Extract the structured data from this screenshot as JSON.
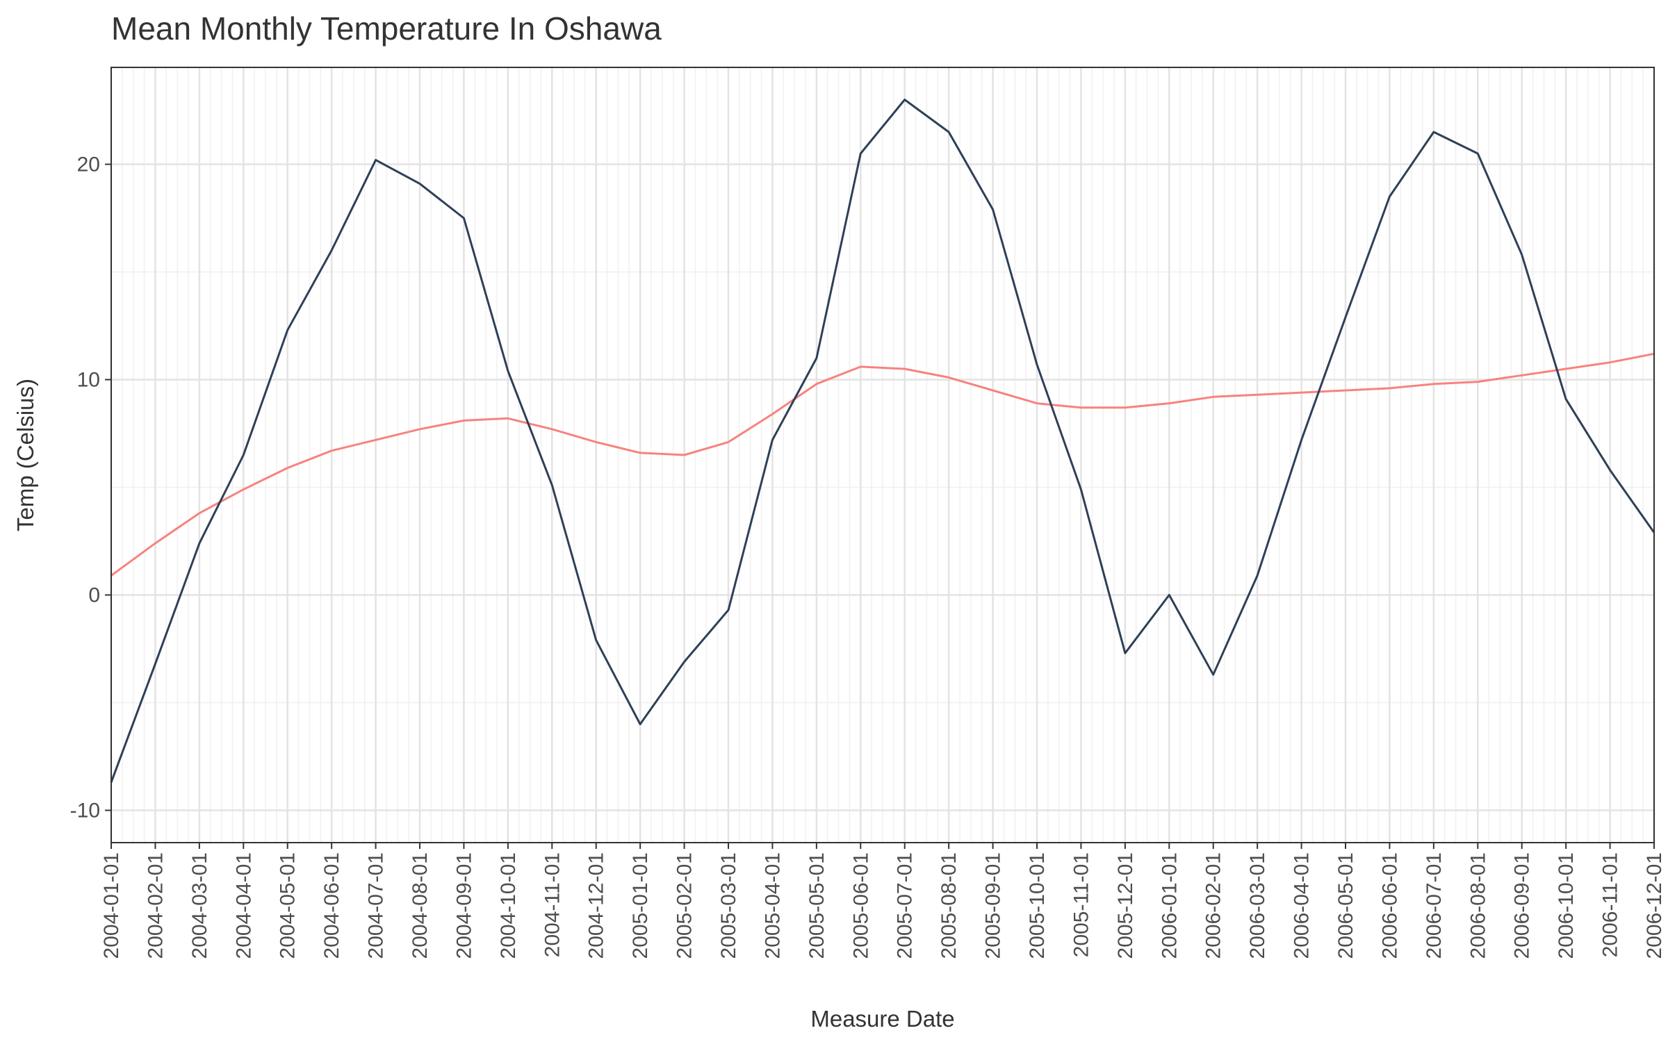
{
  "chart_data": {
    "type": "line",
    "title": "Mean Monthly Temperature In Oshawa",
    "xlabel": "Measure Date",
    "ylabel": "Temp (Celsius)",
    "ylim": [
      -11.5,
      24.5
    ],
    "y_ticks": [
      -10,
      0,
      10,
      20
    ],
    "grid": true,
    "x": [
      "2004-01-01",
      "2004-02-01",
      "2004-03-01",
      "2004-04-01",
      "2004-05-01",
      "2004-06-01",
      "2004-07-01",
      "2004-08-01",
      "2004-09-01",
      "2004-10-01",
      "2004-11-01",
      "2004-12-01",
      "2005-01-01",
      "2005-02-01",
      "2005-03-01",
      "2005-04-01",
      "2005-05-01",
      "2005-06-01",
      "2005-07-01",
      "2005-08-01",
      "2005-09-01",
      "2005-10-01",
      "2005-11-01",
      "2005-12-01",
      "2006-01-01",
      "2006-02-01",
      "2006-03-01",
      "2006-04-01",
      "2006-05-01",
      "2006-06-01",
      "2006-07-01",
      "2006-08-01",
      "2006-09-01",
      "2006-10-01",
      "2006-11-01",
      "2006-12-01"
    ],
    "series": [
      {
        "color": "#2e4057",
        "values": [
          -8.7,
          -3.2,
          2.4,
          6.5,
          12.3,
          16.0,
          20.2,
          19.1,
          17.5,
          10.4,
          5.1,
          -2.1,
          -6.0,
          -3.1,
          -0.7,
          7.2,
          11.0,
          20.5,
          23.0,
          21.5,
          17.9,
          10.7,
          4.9,
          -2.7,
          0.0,
          -3.7,
          0.9,
          7.2,
          12.9,
          18.5,
          21.5,
          20.5,
          15.8,
          9.1,
          5.8,
          2.9
        ]
      },
      {
        "color": "#f8827e",
        "values": [
          0.9,
          2.4,
          3.8,
          4.9,
          5.9,
          6.7,
          7.2,
          7.7,
          8.1,
          8.2,
          7.7,
          7.1,
          6.6,
          6.5,
          7.1,
          8.4,
          9.8,
          10.6,
          10.5,
          10.1,
          9.5,
          8.9,
          8.7,
          8.7,
          8.9,
          9.2,
          9.3,
          9.4,
          9.5,
          9.6,
          9.8,
          9.9,
          10.2,
          10.5,
          10.8,
          11.2
        ]
      }
    ]
  }
}
